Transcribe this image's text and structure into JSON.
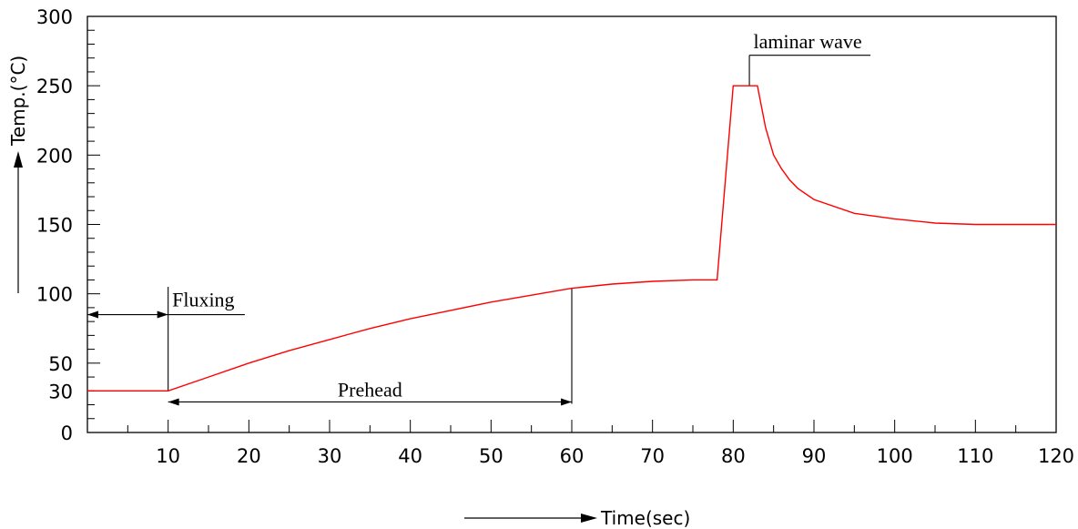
{
  "chart_data": {
    "type": "line",
    "xlabel": "Time(sec)",
    "ylabel": "Temp.(°C)",
    "xlim": [
      0,
      120
    ],
    "ylim": [
      0,
      300
    ],
    "x_ticks": [
      10,
      20,
      30,
      40,
      50,
      60,
      70,
      80,
      90,
      100,
      110,
      120
    ],
    "x_minor_step": 5,
    "y_ticks": [
      0,
      30,
      50,
      100,
      150,
      200,
      250,
      300
    ],
    "y_minor_step": 10,
    "grid": false,
    "line_color": "#ff0000",
    "series": [
      {
        "x": [
          0,
          10,
          15,
          20,
          25,
          30,
          35,
          40,
          45,
          50,
          55,
          60,
          65,
          70,
          75,
          78,
          80,
          81,
          83,
          84,
          85,
          86,
          87,
          88,
          90,
          95,
          100,
          105,
          110,
          115,
          120
        ],
        "y": [
          30,
          30,
          40,
          50,
          59,
          67,
          75,
          82,
          88,
          94,
          99,
          104,
          107,
          109,
          110,
          110,
          250,
          250,
          250,
          220,
          200,
          190,
          182,
          176,
          168,
          158,
          154,
          151,
          150,
          150,
          150
        ]
      }
    ],
    "annotations": [
      {
        "label": "Fluxing",
        "x_start": 0,
        "x_end": 10,
        "y": 85,
        "label_x": 10.5,
        "label_y": 91,
        "underline_end": 19.5
      },
      {
        "label": "Prehead",
        "x_start": 10,
        "x_end": 60,
        "y": 22,
        "label_x": 35,
        "label_y": 26
      },
      {
        "label": "laminar wave",
        "x_anchor": 82,
        "y_anchor": 250,
        "y_line": 272,
        "underline_end": 97,
        "label_x": 82.5,
        "label_y": 277
      }
    ]
  }
}
